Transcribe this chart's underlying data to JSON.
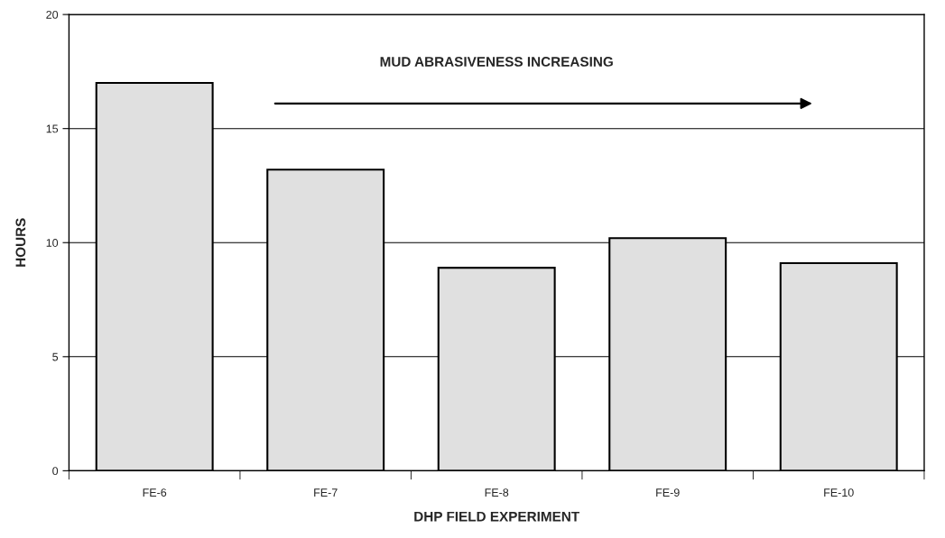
{
  "chart_data": {
    "type": "bar",
    "categories": [
      "FE-6",
      "FE-7",
      "FE-8",
      "FE-9",
      "FE-10"
    ],
    "values": [
      17.0,
      13.2,
      8.9,
      10.2,
      9.1
    ],
    "color": "#e0e0e0",
    "xlabel": "DHP FIELD EXPERIMENT",
    "ylabel": "HOURS",
    "ylim": [
      0,
      20
    ],
    "yticks": [
      0,
      5,
      10,
      15,
      20
    ],
    "grid": "y",
    "annotations": [
      "MUD ABRASIVENESS INCREASING"
    ]
  }
}
